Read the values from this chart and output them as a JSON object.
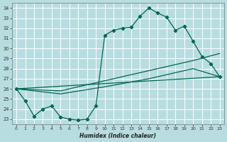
{
  "xlabel": "Humidex (Indice chaleur)",
  "bg_color": "#b8dde0",
  "grid_color": "#ffffff",
  "line_color": "#006655",
  "xlim": [
    -0.5,
    23.5
  ],
  "ylim": [
    22.5,
    34.5
  ],
  "xticks": [
    0,
    1,
    2,
    3,
    4,
    5,
    6,
    7,
    8,
    9,
    10,
    11,
    12,
    13,
    14,
    15,
    16,
    17,
    18,
    19,
    20,
    21,
    22,
    23
  ],
  "yticks": [
    23,
    24,
    25,
    26,
    27,
    28,
    29,
    30,
    31,
    32,
    33,
    34
  ],
  "line1_x": [
    0,
    1,
    2,
    3,
    4,
    5,
    6,
    7,
    8,
    9,
    10,
    11,
    12,
    13,
    14,
    15,
    16,
    17,
    18,
    19,
    20,
    21,
    22,
    23
  ],
  "line1_y": [
    26.0,
    24.8,
    23.3,
    24.0,
    24.3,
    23.2,
    23.0,
    22.9,
    23.0,
    24.3,
    31.3,
    31.8,
    32.0,
    32.1,
    33.2,
    34.0,
    33.5,
    33.1,
    31.8,
    32.2,
    30.7,
    29.2,
    28.5,
    27.2
  ],
  "line2_x": [
    0,
    23
  ],
  "line2_y": [
    26.0,
    27.2
  ],
  "line3_x": [
    0,
    5,
    10,
    15,
    20,
    23
  ],
  "line3_y": [
    26.0,
    25.8,
    26.8,
    27.8,
    28.8,
    29.5
  ],
  "line4_x": [
    0,
    5,
    10,
    15,
    20,
    23
  ],
  "line4_y": [
    26.0,
    25.5,
    26.2,
    27.0,
    28.0,
    27.2
  ]
}
